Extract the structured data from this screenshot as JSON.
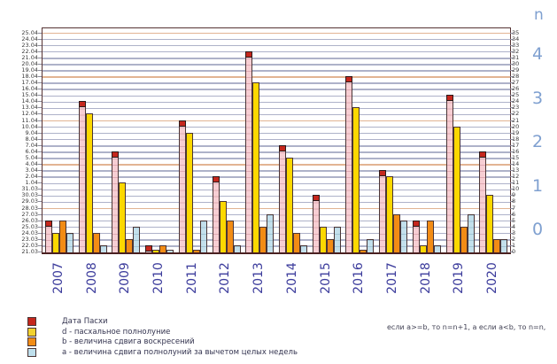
{
  "chart_data": {
    "type": "bar",
    "title": "",
    "categories": [
      "2007",
      "2008",
      "2009",
      "2010",
      "2011",
      "2012",
      "2013",
      "2014",
      "2015",
      "2016",
      "2017",
      "2018",
      "2019",
      "2020"
    ],
    "series": [
      {
        "name": "Дата Пасхи",
        "color": "#c5271d",
        "body_color": "#f7ced3",
        "values": [
          5,
          24,
          16,
          1,
          21,
          12,
          32,
          17,
          9,
          28,
          13,
          5,
          25,
          16
        ],
        "dates_julian": [
          "26.03",
          "14.04",
          "6.04",
          "22.03",
          "11.04",
          "2.04",
          "22.04",
          "7.04",
          "30.03",
          "18.04",
          "3.04",
          "26.03",
          "15.04",
          "6.04"
        ]
      },
      {
        "name": "d - пасхальное полнолуние",
        "color": "#fcd800",
        "values": [
          3,
          22,
          11,
          0,
          19,
          8,
          27,
          15,
          4,
          23,
          12,
          1,
          20,
          9
        ]
      },
      {
        "name": "b - величина сдвига воскресений",
        "color": "#f28c15",
        "values": [
          5,
          3,
          2,
          1,
          0,
          5,
          4,
          3,
          2,
          0,
          6,
          5,
          4,
          2
        ]
      },
      {
        "name": "a - величина сдвига полнолуний за вычетом целых недель",
        "color": "#bedfec",
        "values": [
          3,
          1,
          4,
          0,
          5,
          1,
          6,
          1,
          4,
          2,
          5,
          1,
          6,
          2
        ]
      }
    ],
    "y_left_labels": [
      "25.04",
      "24.04",
      "23.04",
      "22.04",
      "21.04",
      "20.04",
      "19.04",
      "18.04",
      "17.04",
      "16.04",
      "15.04",
      "14.04",
      "13.04",
      "12.04",
      "11.04",
      "10.04",
      "9.04",
      "8.04",
      "7.04",
      "6.04",
      "5.04",
      "4.04",
      "3.04",
      "2.04",
      "1.04",
      "31.03",
      "30.03",
      "29.03",
      "28.03",
      "27.03",
      "26.03",
      "25.03",
      "24.03",
      "23.03",
      "22.03",
      "21.03"
    ],
    "y_right_min": 0,
    "y_right_max": 35,
    "grid": true,
    "week_line_interval": 7,
    "n_axis": {
      "label": "n",
      "band_values": [
        "4",
        "3",
        "2",
        "1",
        "0"
      ]
    },
    "annotation": "если a>=b, то n=n+1, а если a<b, то n=n,"
  },
  "legend": {
    "items": [
      {
        "label": "Дата Пасхи",
        "color": "#c5271d"
      },
      {
        "label": "d - пасхальное полнолуние",
        "color": "#f2d22e"
      },
      {
        "label": "b - величина сдвига воскресений",
        "color": "#f28c15"
      },
      {
        "label": "a - величина сдвига полнолуний за вычетом целых недель",
        "color": "#bedfec"
      }
    ]
  },
  "colors": {
    "grid": "#aeb2c9",
    "grid_week": "#e2b493",
    "year_label": "#3c3c9c",
    "n_label": "#7fa0d0",
    "frame": "#553333"
  }
}
